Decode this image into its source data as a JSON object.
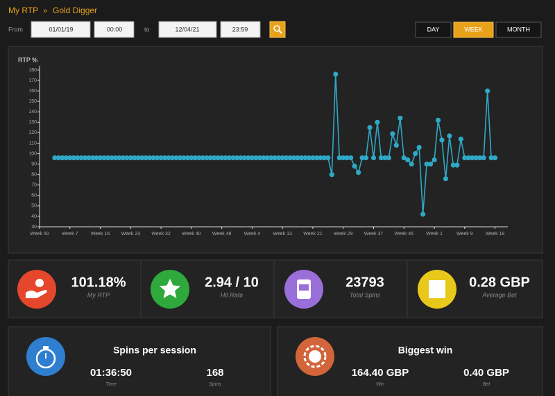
{
  "breadcrumb": {
    "root": "My RTP",
    "separator": "»",
    "current": "Gold Digger"
  },
  "filters": {
    "from_label": "From",
    "from_date": "01/01/19",
    "from_time": "00:00",
    "to_label": "to",
    "to_date": "12/04/21",
    "to_time": "23:59"
  },
  "periods": [
    "DAY",
    "WEEK",
    "MONTH"
  ],
  "chart_data": {
    "type": "line",
    "y_label": "RTP %",
    "color": "#2fa8c6",
    "ylim": [
      30,
      180
    ],
    "yticks": [
      30,
      40,
      50,
      60,
      70,
      80,
      90,
      100,
      110,
      120,
      130,
      140,
      150,
      160,
      170,
      180
    ],
    "xlim": [
      0,
      123
    ],
    "xticks": [
      {
        "value": 0,
        "label": "Week 50"
      },
      {
        "value": 8,
        "label": "Week 7"
      },
      {
        "value": 16,
        "label": "Week 16"
      },
      {
        "value": 24,
        "label": "Week 23"
      },
      {
        "value": 32,
        "label": "Week 32"
      },
      {
        "value": 40,
        "label": "Week 40"
      },
      {
        "value": 48,
        "label": "Week 48"
      },
      {
        "value": 56,
        "label": "Week 4"
      },
      {
        "value": 64,
        "label": "Week 13"
      },
      {
        "value": 72,
        "label": "Week 21"
      },
      {
        "value": 80,
        "label": "Week 29"
      },
      {
        "value": 88,
        "label": "Week 37"
      },
      {
        "value": 96,
        "label": "Week 46"
      },
      {
        "value": 104,
        "label": "Week 1"
      },
      {
        "value": 112,
        "label": "Week 9"
      },
      {
        "value": 120,
        "label": "Week 18"
      }
    ],
    "x": [
      4,
      5,
      6,
      7,
      8,
      9,
      10,
      11,
      12,
      13,
      14,
      15,
      16,
      17,
      18,
      19,
      20,
      21,
      22,
      23,
      24,
      25,
      26,
      27,
      28,
      29,
      30,
      31,
      32,
      33,
      34,
      35,
      36,
      37,
      38,
      39,
      40,
      41,
      42,
      43,
      44,
      45,
      46,
      47,
      48,
      49,
      50,
      51,
      52,
      53,
      54,
      55,
      56,
      57,
      58,
      59,
      60,
      61,
      62,
      63,
      64,
      65,
      66,
      67,
      68,
      69,
      70,
      71,
      72,
      73,
      74,
      75,
      76,
      77,
      78,
      79,
      80,
      81,
      82,
      83,
      84,
      85,
      86,
      87,
      88,
      89,
      90,
      91,
      92,
      93,
      94,
      95,
      96,
      97,
      98,
      99,
      100,
      101,
      102,
      103,
      104,
      105,
      106,
      107,
      108,
      109,
      110,
      111,
      112,
      113,
      114,
      115,
      116,
      117,
      118,
      119,
      120
    ],
    "values": [
      96,
      96,
      96,
      96,
      96,
      96,
      96,
      96,
      96,
      96,
      96,
      96,
      96,
      96,
      96,
      96,
      96,
      96,
      96,
      96,
      96,
      96,
      96,
      96,
      96,
      96,
      96,
      96,
      96,
      96,
      96,
      96,
      96,
      96,
      96,
      96,
      96,
      96,
      96,
      96,
      96,
      96,
      96,
      96,
      96,
      96,
      96,
      96,
      96,
      96,
      96,
      96,
      96,
      96,
      96,
      96,
      96,
      96,
      96,
      96,
      96,
      96,
      96,
      96,
      96,
      96,
      96,
      96,
      96,
      96,
      96,
      96,
      96,
      80,
      176,
      96,
      96,
      96,
      96,
      88,
      82,
      96,
      96,
      125,
      96,
      130,
      96,
      96,
      96,
      119,
      108,
      134,
      96,
      94,
      90,
      100,
      106,
      42,
      90,
      90,
      94,
      132,
      113,
      76,
      117,
      89,
      89,
      114,
      96,
      96,
      96,
      96,
      96,
      96,
      160,
      96,
      96
    ]
  },
  "stats": [
    {
      "value": "101.18%",
      "label": "My RTP"
    },
    {
      "value": "2.94 / 10",
      "label": "Hit Rate"
    },
    {
      "value": "23793",
      "label": "Total Spins"
    },
    {
      "value": "0.28 GBP",
      "label": "Average Bet"
    }
  ],
  "sessions": {
    "title": "Spins per session",
    "items": [
      {
        "value": "01:36:50",
        "label": "Time"
      },
      {
        "value": "168",
        "label": "Spins"
      }
    ]
  },
  "biggest_win": {
    "title": "Biggest win",
    "items": [
      {
        "value": "164.40 GBP",
        "label": "Win"
      },
      {
        "value": "0.40 GBP",
        "label": "Bet"
      }
    ]
  }
}
